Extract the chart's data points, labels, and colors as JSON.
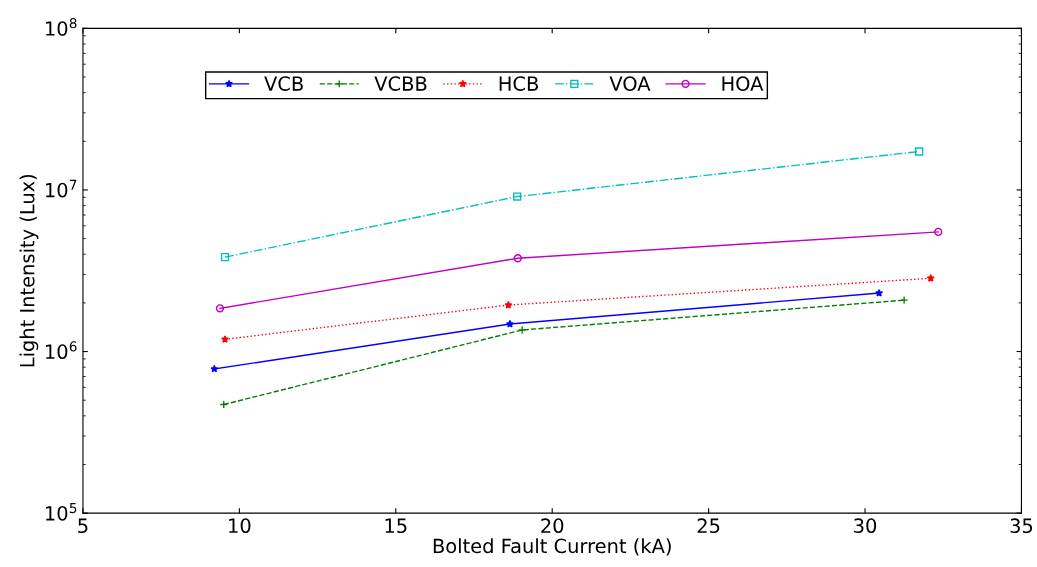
{
  "chart_data": {
    "type": "line",
    "xlabel": "Bolted Fault Current (kA)",
    "ylabel": "Light Intensity (Lux)",
    "log": "y",
    "grid": false,
    "legend": "top",
    "xlim": [
      5,
      35
    ],
    "xticks": [
      5,
      10,
      15,
      20,
      25,
      30,
      35
    ],
    "ylim": [
      100000,
      100000000
    ],
    "yticks": [
      {
        "value": 100000,
        "label": "10$^{5}$"
      },
      {
        "value": 1000000,
        "label": "10$^{6}$"
      },
      {
        "value": 10000000,
        "label": "10$^{7}$"
      },
      {
        "value": 100000000,
        "label": "10$^{8}$"
      }
    ],
    "series": [
      {
        "name": "VCB",
        "color": "#0000ff",
        "marker": "star",
        "line_style": "solid",
        "x": [
          9.2,
          18.65,
          30.45
        ],
        "values": [
          780000,
          1480000,
          2300000
        ]
      },
      {
        "name": "VCBB",
        "color": "#008000",
        "marker": "cross",
        "line_style": "dashed",
        "x": [
          9.5,
          19.04,
          31.25
        ],
        "values": [
          470000,
          1360000,
          2080000
        ]
      },
      {
        "name": "HCB",
        "color": "#ff0000",
        "marker": "star",
        "line_style": "dotted",
        "x": [
          9.54,
          18.6,
          32.1
        ],
        "values": [
          1190000,
          1940000,
          2840000
        ]
      },
      {
        "name": "VOA",
        "color": "#00bfbf",
        "marker": "square",
        "line_style": "dashdot",
        "x": [
          9.54,
          18.88,
          31.73
        ],
        "values": [
          3840000,
          9100000,
          17300000
        ]
      },
      {
        "name": "HOA",
        "color": "#bf00bf",
        "marker": "circle",
        "line_style": "solid",
        "x": [
          9.38,
          18.9,
          32.34
        ],
        "values": [
          1850000,
          3780000,
          5500000
        ]
      }
    ]
  }
}
